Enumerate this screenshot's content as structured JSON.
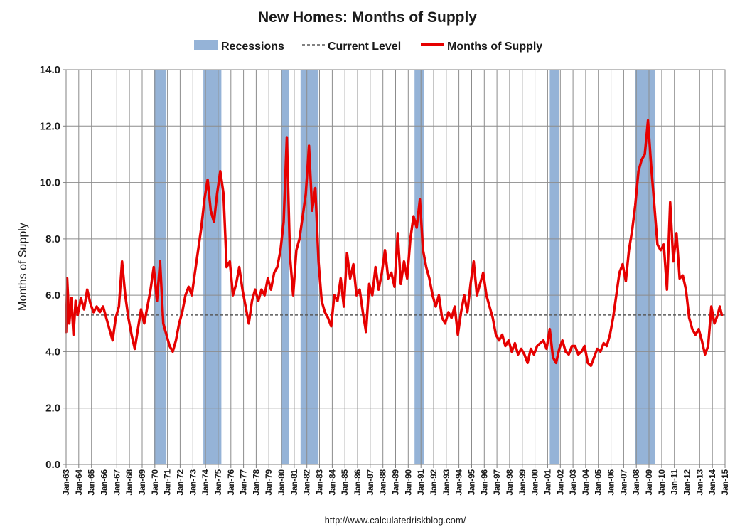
{
  "chart_data": {
    "type": "line",
    "title": "New Homes: Months of Supply",
    "ylabel": "Months of Supply",
    "xlabel": "",
    "source": "http://www.calculatedriskblog.com/",
    "ylim": [
      0,
      14
    ],
    "y_ticks": [
      0,
      2,
      4,
      6,
      8,
      10,
      12,
      14
    ],
    "y_tick_labels": [
      "0.0",
      "2.0",
      "4.0",
      "6.0",
      "8.0",
      "10.0",
      "12.0",
      "14.0"
    ],
    "x_range": [
      "1963-01",
      "2015-01"
    ],
    "x_tick_labels": [
      "Jan-63",
      "Jan-64",
      "Jan-65",
      "Jan-66",
      "Jan-67",
      "Jan-68",
      "Jan-69",
      "Jan-70",
      "Jan-71",
      "Jan-72",
      "Jan-73",
      "Jan-74",
      "Jan-75",
      "Jan-76",
      "Jan-77",
      "Jan-78",
      "Jan-79",
      "Jan-80",
      "Jan-81",
      "Jan-82",
      "Jan-83",
      "Jan-84",
      "Jan-85",
      "Jan-86",
      "Jan-87",
      "Jan-88",
      "Jan-89",
      "Jan-90",
      "Jan-91",
      "Jan-92",
      "Jan-93",
      "Jan-94",
      "Jan-95",
      "Jan-96",
      "Jan-97",
      "Jan-98",
      "Jan-99",
      "Jan-00",
      "Jan-01",
      "Jan-02",
      "Jan-03",
      "Jan-04",
      "Jan-05",
      "Jan-06",
      "Jan-07",
      "Jan-08",
      "Jan-09",
      "Jan-10",
      "Jan-11",
      "Jan-12",
      "Jan-13",
      "Jan-14",
      "Jan-15"
    ],
    "grid": {
      "horizontal": true,
      "vertical": true
    },
    "legend": {
      "position": "top",
      "entries": [
        {
          "label": "Recessions",
          "kind": "box",
          "color": "#95b3d7"
        },
        {
          "label": "Current Level",
          "kind": "dashed",
          "color": "#595959"
        },
        {
          "label": "Months of Supply",
          "kind": "line",
          "color": "#e60000"
        }
      ]
    },
    "recessions": [
      {
        "start": "1969-12",
        "end": "1970-11"
      },
      {
        "start": "1973-11",
        "end": "1975-03"
      },
      {
        "start": "1980-01",
        "end": "1980-07"
      },
      {
        "start": "1981-07",
        "end": "1982-11"
      },
      {
        "start": "1990-07",
        "end": "1991-03"
      },
      {
        "start": "2001-03",
        "end": "2001-11"
      },
      {
        "start": "2007-12",
        "end": "2009-06"
      }
    ],
    "current_level": 5.3,
    "series": [
      {
        "name": "Months of Supply",
        "color": "#e60000",
        "points": [
          [
            "1963-01",
            4.7
          ],
          [
            "1963-02",
            6.6
          ],
          [
            "1963-04",
            5.0
          ],
          [
            "1963-06",
            5.9
          ],
          [
            "1963-08",
            4.6
          ],
          [
            "1963-10",
            5.8
          ],
          [
            "1963-12",
            5.3
          ],
          [
            "1964-03",
            5.9
          ],
          [
            "1964-06",
            5.5
          ],
          [
            "1964-09",
            6.2
          ],
          [
            "1964-12",
            5.7
          ],
          [
            "1965-03",
            5.4
          ],
          [
            "1965-06",
            5.6
          ],
          [
            "1965-09",
            5.4
          ],
          [
            "1965-12",
            5.6
          ],
          [
            "1966-03",
            5.2
          ],
          [
            "1966-06",
            4.8
          ],
          [
            "1966-09",
            4.4
          ],
          [
            "1966-12",
            5.2
          ],
          [
            "1967-03",
            5.6
          ],
          [
            "1967-06",
            7.2
          ],
          [
            "1967-09",
            6.0
          ],
          [
            "1967-12",
            5.2
          ],
          [
            "1968-03",
            4.6
          ],
          [
            "1968-06",
            4.1
          ],
          [
            "1968-09",
            4.8
          ],
          [
            "1968-12",
            5.5
          ],
          [
            "1969-03",
            5.0
          ],
          [
            "1969-06",
            5.6
          ],
          [
            "1969-09",
            6.2
          ],
          [
            "1969-12",
            7.0
          ],
          [
            "1970-03",
            5.8
          ],
          [
            "1970-06",
            7.2
          ],
          [
            "1970-09",
            5.0
          ],
          [
            "1970-12",
            4.6
          ],
          [
            "1971-03",
            4.2
          ],
          [
            "1971-06",
            4.0
          ],
          [
            "1971-09",
            4.4
          ],
          [
            "1971-12",
            5.0
          ],
          [
            "1972-03",
            5.4
          ],
          [
            "1972-06",
            6.0
          ],
          [
            "1972-09",
            6.3
          ],
          [
            "1972-12",
            6.0
          ],
          [
            "1973-03",
            6.8
          ],
          [
            "1973-06",
            7.6
          ],
          [
            "1973-09",
            8.4
          ],
          [
            "1973-12",
            9.4
          ],
          [
            "1974-03",
            10.1
          ],
          [
            "1974-06",
            9.0
          ],
          [
            "1974-09",
            8.6
          ],
          [
            "1974-12",
            9.6
          ],
          [
            "1975-03",
            10.4
          ],
          [
            "1975-06",
            9.6
          ],
          [
            "1975-09",
            7.0
          ],
          [
            "1975-12",
            7.2
          ],
          [
            "1976-03",
            6.0
          ],
          [
            "1976-06",
            6.4
          ],
          [
            "1976-09",
            7.0
          ],
          [
            "1976-12",
            6.2
          ],
          [
            "1977-03",
            5.6
          ],
          [
            "1977-06",
            5.0
          ],
          [
            "1977-09",
            5.8
          ],
          [
            "1977-12",
            6.2
          ],
          [
            "1978-03",
            5.8
          ],
          [
            "1978-06",
            6.2
          ],
          [
            "1978-09",
            6.0
          ],
          [
            "1978-12",
            6.6
          ],
          [
            "1979-03",
            6.2
          ],
          [
            "1979-06",
            6.8
          ],
          [
            "1979-09",
            7.0
          ],
          [
            "1979-12",
            7.6
          ],
          [
            "1980-03",
            8.6
          ],
          [
            "1980-06",
            11.6
          ],
          [
            "1980-09",
            7.4
          ],
          [
            "1980-12",
            6.0
          ],
          [
            "1981-03",
            7.6
          ],
          [
            "1981-06",
            8.0
          ],
          [
            "1981-09",
            8.8
          ],
          [
            "1981-12",
            9.6
          ],
          [
            "1982-03",
            11.3
          ],
          [
            "1982-06",
            9.0
          ],
          [
            "1982-09",
            9.8
          ],
          [
            "1982-12",
            7.2
          ],
          [
            "1983-03",
            5.8
          ],
          [
            "1983-06",
            5.4
          ],
          [
            "1983-09",
            5.2
          ],
          [
            "1983-12",
            4.9
          ],
          [
            "1984-03",
            6.0
          ],
          [
            "1984-06",
            5.8
          ],
          [
            "1984-09",
            6.6
          ],
          [
            "1984-12",
            5.6
          ],
          [
            "1985-03",
            7.5
          ],
          [
            "1985-06",
            6.6
          ],
          [
            "1985-09",
            7.1
          ],
          [
            "1985-12",
            6.0
          ],
          [
            "1986-03",
            6.2
          ],
          [
            "1986-06",
            5.4
          ],
          [
            "1986-09",
            4.7
          ],
          [
            "1986-12",
            6.4
          ],
          [
            "1987-03",
            6.0
          ],
          [
            "1987-06",
            7.0
          ],
          [
            "1987-09",
            6.2
          ],
          [
            "1987-12",
            6.8
          ],
          [
            "1988-03",
            7.6
          ],
          [
            "1988-06",
            6.6
          ],
          [
            "1988-09",
            6.8
          ],
          [
            "1988-12",
            6.3
          ],
          [
            "1989-03",
            8.2
          ],
          [
            "1989-06",
            6.4
          ],
          [
            "1989-09",
            7.2
          ],
          [
            "1989-12",
            6.6
          ],
          [
            "1990-03",
            8.0
          ],
          [
            "1990-06",
            8.8
          ],
          [
            "1990-09",
            8.4
          ],
          [
            "1990-12",
            9.4
          ],
          [
            "1991-03",
            7.6
          ],
          [
            "1991-06",
            7.0
          ],
          [
            "1991-09",
            6.6
          ],
          [
            "1991-12",
            6.0
          ],
          [
            "1992-03",
            5.6
          ],
          [
            "1992-06",
            6.0
          ],
          [
            "1992-09",
            5.2
          ],
          [
            "1992-12",
            5.0
          ],
          [
            "1993-03",
            5.4
          ],
          [
            "1993-06",
            5.2
          ],
          [
            "1993-09",
            5.6
          ],
          [
            "1993-12",
            4.6
          ],
          [
            "1994-03",
            5.4
          ],
          [
            "1994-06",
            6.0
          ],
          [
            "1994-09",
            5.4
          ],
          [
            "1994-12",
            6.4
          ],
          [
            "1995-03",
            7.2
          ],
          [
            "1995-06",
            6.0
          ],
          [
            "1995-09",
            6.4
          ],
          [
            "1995-12",
            6.8
          ],
          [
            "1996-03",
            6.0
          ],
          [
            "1996-06",
            5.6
          ],
          [
            "1996-09",
            5.2
          ],
          [
            "1996-12",
            4.6
          ],
          [
            "1997-03",
            4.4
          ],
          [
            "1997-06",
            4.6
          ],
          [
            "1997-09",
            4.2
          ],
          [
            "1997-12",
            4.4
          ],
          [
            "1998-03",
            4.0
          ],
          [
            "1998-06",
            4.3
          ],
          [
            "1998-09",
            3.9
          ],
          [
            "1998-12",
            4.1
          ],
          [
            "1999-03",
            3.9
          ],
          [
            "1999-06",
            3.6
          ],
          [
            "1999-09",
            4.1
          ],
          [
            "1999-12",
            3.9
          ],
          [
            "2000-03",
            4.2
          ],
          [
            "2000-06",
            4.3
          ],
          [
            "2000-09",
            4.4
          ],
          [
            "2000-12",
            4.1
          ],
          [
            "2001-03",
            4.8
          ],
          [
            "2001-06",
            3.8
          ],
          [
            "2001-09",
            3.6
          ],
          [
            "2001-12",
            4.1
          ],
          [
            "2002-03",
            4.4
          ],
          [
            "2002-06",
            4.0
          ],
          [
            "2002-09",
            3.9
          ],
          [
            "2002-12",
            4.2
          ],
          [
            "2003-03",
            4.2
          ],
          [
            "2003-06",
            3.9
          ],
          [
            "2003-09",
            4.0
          ],
          [
            "2003-12",
            4.2
          ],
          [
            "2004-03",
            3.6
          ],
          [
            "2004-06",
            3.5
          ],
          [
            "2004-09",
            3.8
          ],
          [
            "2004-12",
            4.1
          ],
          [
            "2005-03",
            4.0
          ],
          [
            "2005-06",
            4.3
          ],
          [
            "2005-09",
            4.2
          ],
          [
            "2005-12",
            4.6
          ],
          [
            "2006-03",
            5.2
          ],
          [
            "2006-06",
            6.0
          ],
          [
            "2006-09",
            6.8
          ],
          [
            "2006-12",
            7.1
          ],
          [
            "2007-03",
            6.5
          ],
          [
            "2007-06",
            7.6
          ],
          [
            "2007-09",
            8.3
          ],
          [
            "2007-12",
            9.2
          ],
          [
            "2008-03",
            10.4
          ],
          [
            "2008-06",
            10.8
          ],
          [
            "2008-09",
            11.0
          ],
          [
            "2008-12",
            12.2
          ],
          [
            "2009-03",
            10.6
          ],
          [
            "2009-06",
            9.2
          ],
          [
            "2009-09",
            7.8
          ],
          [
            "2009-12",
            7.6
          ],
          [
            "2010-03",
            7.8
          ],
          [
            "2010-06",
            6.2
          ],
          [
            "2010-09",
            9.3
          ],
          [
            "2010-12",
            7.2
          ],
          [
            "2011-03",
            8.2
          ],
          [
            "2011-06",
            6.6
          ],
          [
            "2011-09",
            6.7
          ],
          [
            "2011-12",
            6.2
          ],
          [
            "2012-03",
            5.2
          ],
          [
            "2012-06",
            4.8
          ],
          [
            "2012-09",
            4.6
          ],
          [
            "2012-12",
            4.8
          ],
          [
            "2013-03",
            4.4
          ],
          [
            "2013-06",
            3.9
          ],
          [
            "2013-09",
            4.2
          ],
          [
            "2013-12",
            5.6
          ],
          [
            "2014-03",
            5.0
          ],
          [
            "2014-06",
            5.3
          ],
          [
            "2014-08",
            5.6
          ],
          [
            "2014-10",
            5.3
          ]
        ]
      }
    ]
  }
}
